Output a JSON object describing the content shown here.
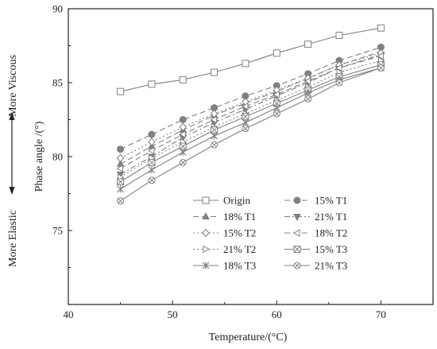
{
  "chart_data": {
    "type": "line",
    "title": "",
    "xlabel": "Temperature/(°C)",
    "ylabel": "Phase angle  /(°)",
    "xlim": [
      40,
      75
    ],
    "ylim": [
      70,
      90
    ],
    "xticks": [
      "40",
      "50",
      "60",
      "70"
    ],
    "yticks": [
      "75",
      "80",
      "85",
      "90"
    ],
    "side_label_top": "More Viscous",
    "side_label_bottom": "More Elastic",
    "legend_position": "lower-right",
    "grid": false,
    "x": [
      45,
      48,
      51,
      54,
      57,
      60,
      63,
      66,
      70
    ],
    "series": [
      {
        "name": "Origin",
        "marker": "square-open",
        "dash": "solid",
        "values": [
          84.4,
          84.9,
          85.2,
          85.7,
          86.3,
          87.0,
          87.6,
          88.2,
          88.7
        ]
      },
      {
        "name": "15% T1",
        "marker": "circle-filled",
        "dash": "longdash",
        "values": [
          80.5,
          81.5,
          82.5,
          83.3,
          84.1,
          84.8,
          85.6,
          86.5,
          87.4
        ]
      },
      {
        "name": "18% T1",
        "marker": "triangle-up-filled",
        "dash": "longdash",
        "values": [
          79.5,
          80.7,
          81.8,
          82.8,
          83.6,
          84.4,
          85.3,
          86.2,
          87.1
        ]
      },
      {
        "name": "21% T1",
        "marker": "triangle-down-filled",
        "dash": "dashdot",
        "values": [
          78.8,
          80.0,
          81.3,
          82.3,
          83.2,
          84.1,
          85.0,
          86.0,
          86.9
        ]
      },
      {
        "name": "15% T2",
        "marker": "diamond-open",
        "dash": "dotted",
        "values": [
          79.9,
          81.0,
          82.0,
          82.9,
          83.7,
          84.5,
          85.3,
          86.2,
          87.0
        ]
      },
      {
        "name": "18% T2",
        "marker": "triangle-left-open",
        "dash": "longdash",
        "values": [
          79.2,
          80.4,
          81.5,
          82.5,
          83.4,
          84.2,
          85.1,
          86.0,
          86.8
        ]
      },
      {
        "name": "21% T2",
        "marker": "triangle-right-open",
        "dash": "dotted",
        "values": [
          78.6,
          79.9,
          81.0,
          82.0,
          82.9,
          83.8,
          84.7,
          85.7,
          86.5
        ]
      },
      {
        "name": "15% T3",
        "marker": "square-x",
        "dash": "solid",
        "values": [
          78.3,
          79.6,
          80.7,
          81.8,
          82.7,
          83.6,
          84.5,
          85.4,
          86.2
        ]
      },
      {
        "name": "18% T3",
        "marker": "asterisk",
        "dash": "solid",
        "values": [
          77.8,
          79.1,
          80.3,
          81.4,
          82.3,
          83.3,
          84.3,
          85.2,
          86.0
        ]
      },
      {
        "name": "21% T3",
        "marker": "circle-x",
        "dash": "solid",
        "values": [
          77.0,
          78.4,
          79.6,
          80.8,
          81.9,
          82.9,
          83.9,
          85.0,
          86.0
        ]
      }
    ]
  },
  "colors": {
    "line": "#808080",
    "axis": "#222222",
    "text": "#222222"
  }
}
